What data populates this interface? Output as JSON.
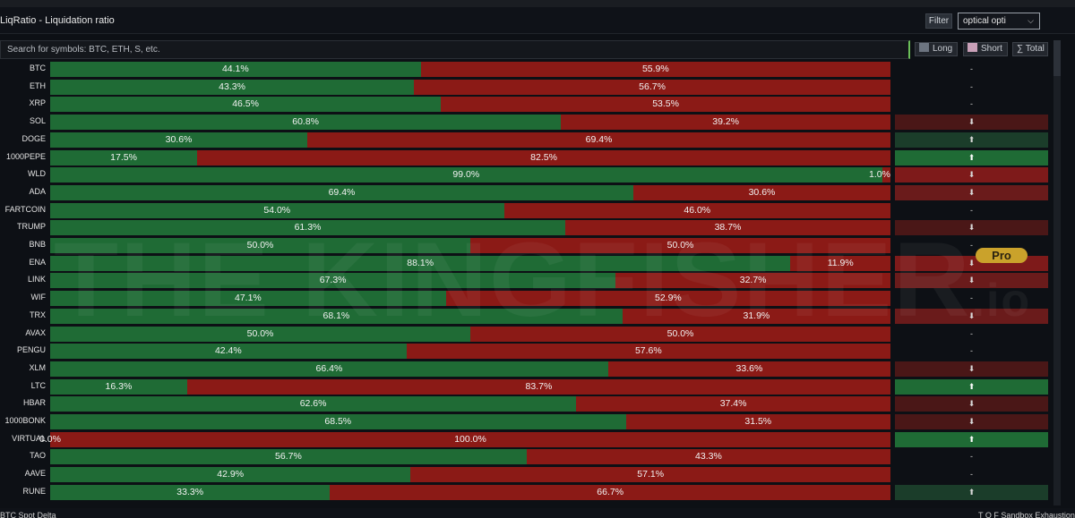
{
  "window": {
    "title": "LiqRatio - Liquidation ratio"
  },
  "toolbar": {
    "filter_label": "Filter",
    "select_value": "optical opti",
    "select_chevron": "⌵"
  },
  "search": {
    "placeholder": "Search for symbols: BTC, ETH, S, etc."
  },
  "toggles": {
    "long_label": "Long",
    "short_label": "Short",
    "total_label": "∑ Total"
  },
  "colors": {
    "long": "#1f6b35",
    "short": "#8b1a16",
    "accent": "#6bbf59",
    "pro": "#caa22b"
  },
  "watermark": {
    "text": "THE KINGFISHER",
    "suffix": ".io"
  },
  "pro_badge": "Pro",
  "rows": [
    {
      "symbol": "BTC",
      "long": 44.1,
      "short": 55.9,
      "long_label": "44.1%",
      "short_label": "55.9%",
      "trend": "-",
      "trend_class": "none"
    },
    {
      "symbol": "ETH",
      "long": 43.3,
      "short": 56.7,
      "long_label": "43.3%",
      "short_label": "56.7%",
      "trend": "-",
      "trend_class": "none"
    },
    {
      "symbol": "XRP",
      "long": 46.5,
      "short": 53.5,
      "long_label": "46.5%",
      "short_label": "53.5%",
      "trend": "-",
      "trend_class": "none"
    },
    {
      "symbol": "SOL",
      "long": 60.8,
      "short": 39.2,
      "long_label": "60.8%",
      "short_label": "39.2%",
      "trend": "⬇",
      "trend_class": "down-weak"
    },
    {
      "symbol": "DOGE",
      "long": 30.6,
      "short": 69.4,
      "long_label": "30.6%",
      "short_label": "69.4%",
      "trend": "⬆",
      "trend_class": "up-weak"
    },
    {
      "symbol": "1000PEPE",
      "long": 17.5,
      "short": 82.5,
      "long_label": "17.5%",
      "short_label": "82.5%",
      "trend": "⬆",
      "trend_class": "up-strong"
    },
    {
      "symbol": "WLD",
      "long": 99.0,
      "short": 1.0,
      "long_label": "99.0%",
      "short_label": "1.0%",
      "trend": "⬇",
      "trend_class": "down-strong"
    },
    {
      "symbol": "ADA",
      "long": 69.4,
      "short": 30.6,
      "long_label": "69.4%",
      "short_label": "30.6%",
      "trend": "⬇",
      "trend_class": "down-mid"
    },
    {
      "symbol": "FARTCOIN",
      "long": 54.0,
      "short": 46.0,
      "long_label": "54.0%",
      "short_label": "46.0%",
      "trend": "-",
      "trend_class": "none"
    },
    {
      "symbol": "TRUMP",
      "long": 61.3,
      "short": 38.7,
      "long_label": "61.3%",
      "short_label": "38.7%",
      "trend": "⬇",
      "trend_class": "down-weak"
    },
    {
      "symbol": "BNB",
      "long": 50.0,
      "short": 50.0,
      "long_label": "50.0%",
      "short_label": "50.0%",
      "trend": "-",
      "trend_class": "none"
    },
    {
      "symbol": "ENA",
      "long": 88.1,
      "short": 11.9,
      "long_label": "88.1%",
      "short_label": "11.9%",
      "trend": "⬇",
      "trend_class": "down-strong"
    },
    {
      "symbol": "LINK",
      "long": 67.3,
      "short": 32.7,
      "long_label": "67.3%",
      "short_label": "32.7%",
      "trend": "⬇",
      "trend_class": "down-mid"
    },
    {
      "symbol": "WIF",
      "long": 47.1,
      "short": 52.9,
      "long_label": "47.1%",
      "short_label": "52.9%",
      "trend": "-",
      "trend_class": "none"
    },
    {
      "symbol": "TRX",
      "long": 68.1,
      "short": 31.9,
      "long_label": "68.1%",
      "short_label": "31.9%",
      "trend": "⬇",
      "trend_class": "down-mid"
    },
    {
      "symbol": "AVAX",
      "long": 50.0,
      "short": 50.0,
      "long_label": "50.0%",
      "short_label": "50.0%",
      "trend": "-",
      "trend_class": "none"
    },
    {
      "symbol": "PENGU",
      "long": 42.4,
      "short": 57.6,
      "long_label": "42.4%",
      "short_label": "57.6%",
      "trend": "-",
      "trend_class": "none"
    },
    {
      "symbol": "XLM",
      "long": 66.4,
      "short": 33.6,
      "long_label": "66.4%",
      "short_label": "33.6%",
      "trend": "⬇",
      "trend_class": "down-weak"
    },
    {
      "symbol": "LTC",
      "long": 16.3,
      "short": 83.7,
      "long_label": "16.3%",
      "short_label": "83.7%",
      "trend": "⬆",
      "trend_class": "up-strong"
    },
    {
      "symbol": "HBAR",
      "long": 62.6,
      "short": 37.4,
      "long_label": "62.6%",
      "short_label": "37.4%",
      "trend": "⬇",
      "trend_class": "down-weak"
    },
    {
      "symbol": "1000BONK",
      "long": 68.5,
      "short": 31.5,
      "long_label": "68.5%",
      "short_label": "31.5%",
      "trend": "⬇",
      "trend_class": "down-weak"
    },
    {
      "symbol": "VIRTUAL",
      "long": 0.0,
      "short": 100.0,
      "long_label": "0.0%",
      "short_label": "100.0%",
      "trend": "⬆",
      "trend_class": "up-strong"
    },
    {
      "symbol": "TAO",
      "long": 56.7,
      "short": 43.3,
      "long_label": "56.7%",
      "short_label": "43.3%",
      "trend": "-",
      "trend_class": "none"
    },
    {
      "symbol": "AAVE",
      "long": 42.9,
      "short": 57.1,
      "long_label": "42.9%",
      "short_label": "57.1%",
      "trend": "-",
      "trend_class": "none"
    },
    {
      "symbol": "RUNE",
      "long": 33.3,
      "short": 66.7,
      "long_label": "33.3%",
      "short_label": "66.7%",
      "trend": "⬆",
      "trend_class": "up-weak"
    }
  ],
  "bottom": {
    "left": "BTC Spot Delta",
    "right": "T  O F    Sandbox Exhaustion"
  }
}
